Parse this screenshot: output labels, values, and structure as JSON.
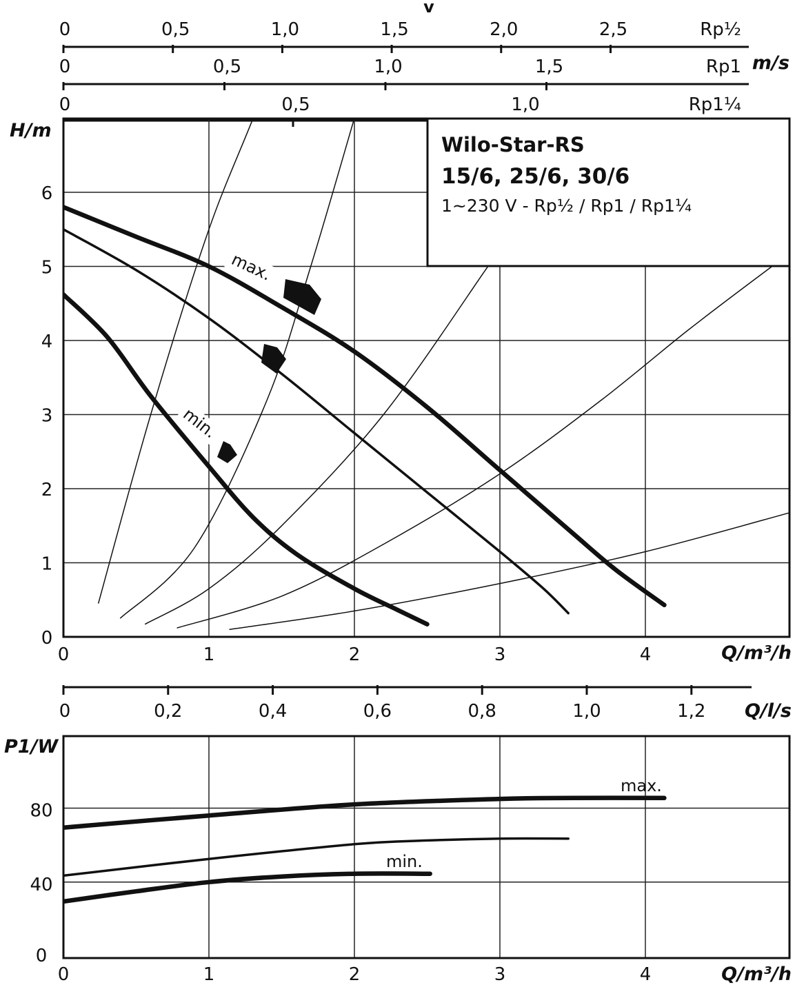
{
  "chart_data": [
    {
      "type": "line",
      "role": "velocity-scales",
      "title": "v",
      "unit_label": "m/s",
      "scales": [
        {
          "name": "Rp½",
          "range": [
            0,
            2.9
          ],
          "ticks": [
            0,
            0.5,
            1.0,
            1.5,
            2.0,
            2.5
          ],
          "tick_labels": [
            "0",
            "0,5",
            "1,0",
            "1,5",
            "2,0",
            "2,5"
          ]
        },
        {
          "name": "Rp1",
          "range": [
            0,
            1.75
          ],
          "ticks": [
            0,
            0.5,
            1.0,
            1.5
          ],
          "tick_labels": [
            "0",
            "0,5",
            "1,0",
            "1,5"
          ]
        },
        {
          "name": "Rp1¼",
          "range": [
            0,
            1.45
          ],
          "ticks": [
            0,
            0.5,
            1.0
          ],
          "tick_labels": [
            "0",
            "0,5",
            "1,0"
          ]
        }
      ]
    },
    {
      "type": "line",
      "role": "head-curves",
      "title_lines": [
        "Wilo-Star-RS",
        "15/6, 25/6, 30/6",
        "1~230 V - Rp½ / Rp1 / Rp1¼"
      ],
      "xlabel": "Q/m³/h",
      "ylabel": "H/m",
      "xlim": [
        0,
        5
      ],
      "ylim": [
        0,
        7
      ],
      "x_ticks": [
        0,
        1,
        2,
        3,
        4
      ],
      "x_tick_labels": [
        "0",
        "1",
        "2",
        "3",
        "4"
      ],
      "y_ticks": [
        0,
        1,
        2,
        3,
        4,
        5,
        6
      ],
      "y_tick_labels": [
        "0",
        "1",
        "2",
        "3",
        "4",
        "5",
        "6"
      ],
      "grid": true,
      "curve_labels": {
        "max": "max.",
        "min": "min."
      },
      "series": [
        {
          "name": "max.",
          "weight": "bold",
          "x": [
            0,
            0.5,
            1.0,
            1.5,
            2.0,
            2.5,
            3.0,
            3.5,
            3.8,
            4.13
          ],
          "y": [
            5.8,
            5.4,
            5.0,
            4.45,
            3.85,
            3.1,
            2.25,
            1.4,
            0.9,
            0.43
          ]
        },
        {
          "name": "mid",
          "weight": "thin",
          "x": [
            0,
            0.5,
            1.0,
            1.5,
            2.0,
            2.5,
            3.0,
            3.3,
            3.47
          ],
          "y": [
            5.5,
            4.95,
            4.3,
            3.55,
            2.75,
            1.95,
            1.15,
            0.65,
            0.32
          ]
        },
        {
          "name": "min.",
          "weight": "bold",
          "x": [
            0,
            0.3,
            0.6,
            1.0,
            1.3,
            1.6,
            2.0,
            2.3,
            2.5
          ],
          "y": [
            4.62,
            4.05,
            3.25,
            2.3,
            1.62,
            1.12,
            0.65,
            0.36,
            0.17
          ]
        }
      ],
      "system_curves": [
        {
          "x": [
            0.24,
            0.6,
            1.0,
            1.4,
            1.81
          ],
          "y": [
            0.45,
            3.0,
            5.5,
            7.5,
            10.0
          ]
        },
        {
          "x": [
            0.39,
            0.9,
            1.4,
            1.7,
            2.0
          ],
          "y": [
            0.25,
            1.2,
            3.2,
            5.0,
            7.0
          ]
        },
        {
          "x": [
            0.56,
            1.0,
            1.5,
            2.2,
            2.9,
            3.0
          ],
          "y": [
            0.17,
            0.65,
            1.5,
            3.0,
            4.95,
            5.25
          ]
        },
        {
          "x": [
            0.78,
            1.5,
            2.2,
            3.0,
            3.7,
            4.3,
            4.87
          ],
          "y": [
            0.12,
            0.55,
            1.25,
            2.2,
            3.2,
            4.15,
            5.0
          ]
        },
        {
          "x": [
            1.14,
            2.0,
            3.0,
            4.0,
            5.0
          ],
          "y": [
            0.1,
            0.35,
            0.72,
            1.15,
            1.68
          ]
        }
      ]
    },
    {
      "type": "line",
      "role": "flow-scale",
      "xlabel": "Q/l/s",
      "ticks": [
        0,
        0.2,
        0.4,
        0.6,
        0.8,
        1.0,
        1.2
      ],
      "tick_labels": [
        "0",
        "0,2",
        "0,4",
        "0,6",
        "0,8",
        "1,0",
        "1,2"
      ]
    },
    {
      "type": "line",
      "role": "power-curves",
      "xlabel": "Q/m³/h",
      "ylabel": "P1/W",
      "xlim": [
        0,
        5
      ],
      "ylim": [
        0,
        120
      ],
      "x_ticks": [
        0,
        1,
        2,
        3,
        4
      ],
      "x_tick_labels": [
        "0",
        "1",
        "2",
        "3",
        "4"
      ],
      "y_ticks": [
        0,
        40,
        80
      ],
      "y_tick_labels": [
        "0",
        "40",
        "80"
      ],
      "grid": true,
      "curve_labels": {
        "max": "max.",
        "min": "min."
      },
      "series": [
        {
          "name": "max.",
          "weight": "bold",
          "x": [
            0,
            1.0,
            2.0,
            3.0,
            3.5,
            4.13
          ],
          "y": [
            69.5,
            76,
            82,
            85,
            85.5,
            85.5
          ]
        },
        {
          "name": "mid",
          "weight": "thin",
          "x": [
            0,
            1.0,
            2.0,
            2.5,
            3.0,
            3.47
          ],
          "y": [
            43.5,
            52.5,
            60.5,
            62.5,
            63.5,
            63.5
          ]
        },
        {
          "name": "min.",
          "weight": "bold",
          "x": [
            0,
            0.5,
            1.0,
            1.5,
            2.0,
            2.52
          ],
          "y": [
            29.5,
            35,
            40,
            43,
            44.5,
            44.5
          ]
        }
      ]
    }
  ]
}
